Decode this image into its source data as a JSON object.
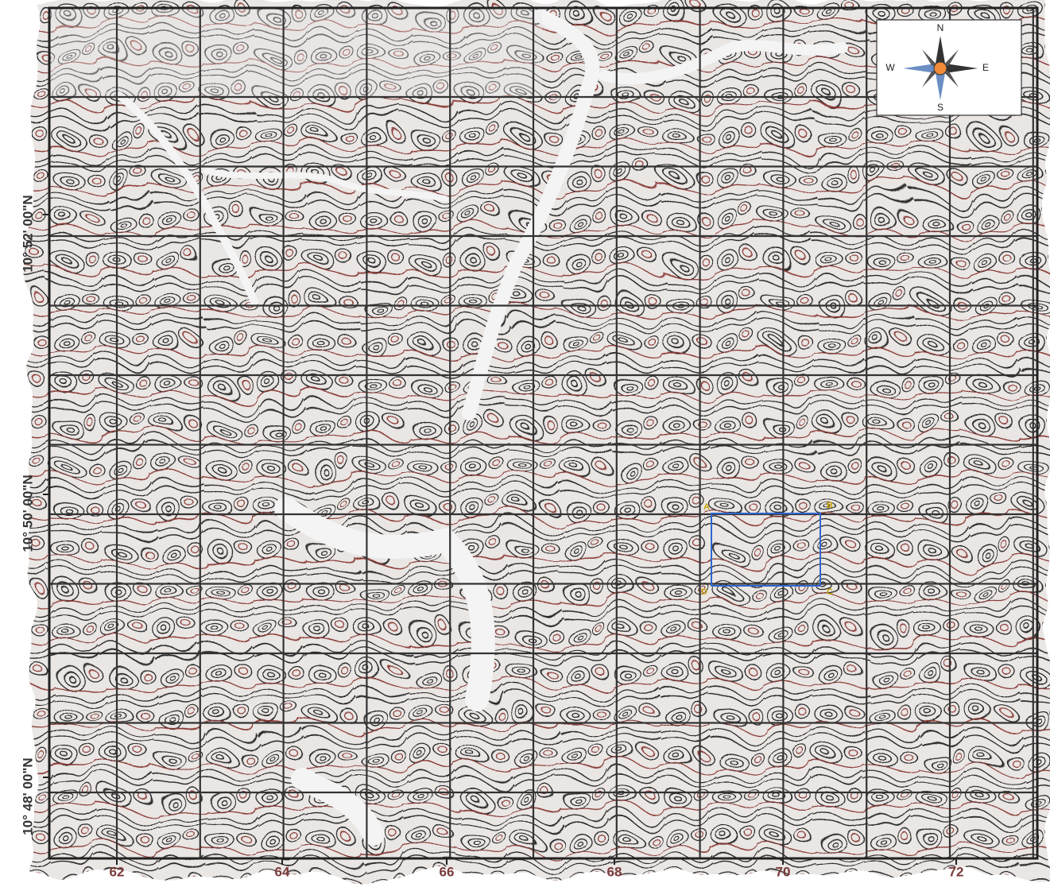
{
  "map": {
    "x_axis": {
      "labels": [
        62,
        64,
        66,
        68,
        70,
        72
      ]
    },
    "y_axis": {
      "labels": [
        "10° 52' 00\"N",
        "10° 50' 00\"N",
        "10° 48' 00\"N"
      ]
    },
    "compass": {
      "north": "N",
      "east": "E",
      "south": "S",
      "west": "W"
    },
    "study_area": {
      "corners": [
        "A",
        "B",
        "C",
        "D"
      ]
    }
  }
}
